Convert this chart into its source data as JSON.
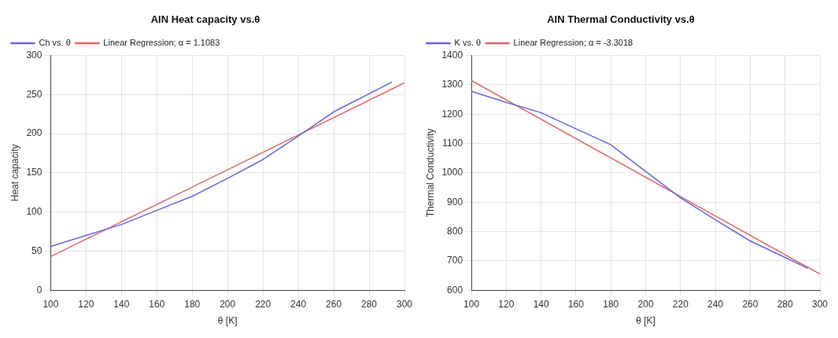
{
  "chart_data": [
    {
      "type": "line",
      "title": "AIN Heat capacity vs.θ",
      "xlabel": "θ [K]",
      "ylabel": "Heat capacity",
      "xlim": [
        100,
        300
      ],
      "xticks": [
        100,
        120,
        140,
        160,
        180,
        200,
        220,
        240,
        260,
        280,
        300
      ],
      "ylim": [
        0,
        300
      ],
      "yticks": [
        0,
        50,
        100,
        150,
        200,
        250,
        300
      ],
      "grid": true,
      "legend": "top left",
      "marker": "none",
      "line_style": "solid",
      "series": [
        {
          "name": "Ch vs. θ",
          "color": "#6666e0",
          "x": [
            100,
            120,
            140,
            160,
            180,
            200,
            220,
            240,
            260,
            293
          ],
          "values": [
            56,
            70,
            84,
            102,
            120,
            143,
            167,
            197,
            228,
            266
          ]
        },
        {
          "name": "Linear Regression; α = 1.1083",
          "type": "line",
          "color": "#e06666",
          "x": [
            100,
            300
          ],
          "values": [
            43,
            265
          ]
        }
      ]
    },
    {
      "type": "line",
      "title": "AIN Thermal Conductivity vs.θ",
      "xlabel": "θ [K]",
      "ylabel": "Thermal Conductivity",
      "xlim": [
        100,
        300
      ],
      "xticks": [
        100,
        120,
        140,
        160,
        180,
        200,
        220,
        240,
        260,
        280,
        300
      ],
      "ylim": [
        600,
        1400
      ],
      "yticks": [
        600,
        700,
        800,
        900,
        1000,
        1100,
        1200,
        1300,
        1400
      ],
      "grid": true,
      "legend": "top left",
      "marker": "none",
      "line_style": "solid",
      "series": [
        {
          "name": "K vs. θ",
          "color": "#6666e0",
          "x": [
            100,
            120,
            140,
            160,
            180,
            200,
            220,
            240,
            260,
            293
          ],
          "values": [
            1278,
            1240,
            1205,
            1150,
            1096,
            1005,
            915,
            840,
            768,
            675
          ]
        },
        {
          "name": "Linear Regression; α = -3.3018",
          "type": "line",
          "color": "#e06666",
          "x": [
            100,
            300
          ],
          "values": [
            1315,
            655
          ]
        }
      ]
    }
  ]
}
